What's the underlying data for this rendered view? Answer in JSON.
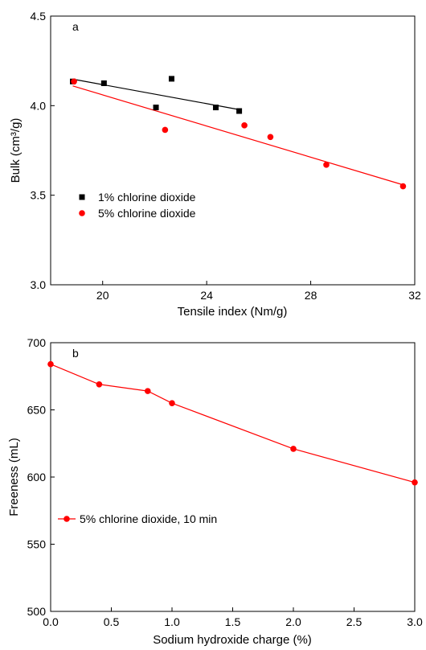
{
  "chart_data": [
    {
      "type": "scatter",
      "panel_label": "a",
      "xlabel": "Tensile index (Nm/g)",
      "ylabel": "Bulk (cm³/g)",
      "xlim": [
        18,
        32
      ],
      "ylim": [
        3.0,
        4.5
      ],
      "xticks": [
        20,
        24,
        28,
        32
      ],
      "xtick_labels": [
        "20",
        "24",
        "28",
        "32"
      ],
      "yticks": [
        3.0,
        3.5,
        4.0,
        4.5
      ],
      "ytick_labels": [
        "3.0",
        "3.5",
        "4.0",
        "4.5"
      ],
      "grid": false,
      "legend_position": "lower-left",
      "series": [
        {
          "name": "1% chlorine dioxide",
          "marker": "square",
          "color": "#000000",
          "x": [
            18.85,
            20.05,
            22.05,
            22.65,
            24.35,
            25.25
          ],
          "y": [
            4.135,
            4.125,
            3.99,
            4.15,
            3.99,
            3.97
          ],
          "fit": {
            "x": [
              18.85,
              25.25
            ],
            "y": [
              4.148,
              3.978
            ]
          }
        },
        {
          "name": "5% chlorine dioxide",
          "marker": "circle",
          "color": "#ff0000",
          "x": [
            18.9,
            22.4,
            25.45,
            26.45,
            28.6,
            31.55
          ],
          "y": [
            4.135,
            3.865,
            3.89,
            3.825,
            3.67,
            3.55
          ],
          "fit": {
            "x": [
              18.85,
              31.55
            ],
            "y": [
              4.11,
              3.558
            ]
          }
        }
      ]
    },
    {
      "type": "line",
      "panel_label": "b",
      "xlabel": "Sodium hydroxide charge (%)",
      "ylabel": "Freeness (mL)",
      "xlim": [
        0.0,
        3.0
      ],
      "ylim": [
        500,
        700
      ],
      "xticks": [
        0.0,
        0.5,
        1.0,
        1.5,
        2.0,
        2.5,
        3.0
      ],
      "xtick_labels": [
        "0.0",
        "0.5",
        "1.0",
        "1.5",
        "2.0",
        "2.5",
        "3.0"
      ],
      "yticks": [
        500,
        550,
        600,
        650,
        700
      ],
      "ytick_labels": [
        "500",
        "550",
        "600",
        "650",
        "700"
      ],
      "grid": false,
      "legend_position": "lower-left",
      "series": [
        {
          "name": "5% chlorine dioxide, 10 min",
          "marker": "circle",
          "color": "#ff0000",
          "x": [
            0.0,
            0.4,
            0.8,
            1.0,
            2.0,
            3.0
          ],
          "y": [
            684,
            669,
            664,
            655,
            621,
            596
          ]
        }
      ]
    }
  ]
}
